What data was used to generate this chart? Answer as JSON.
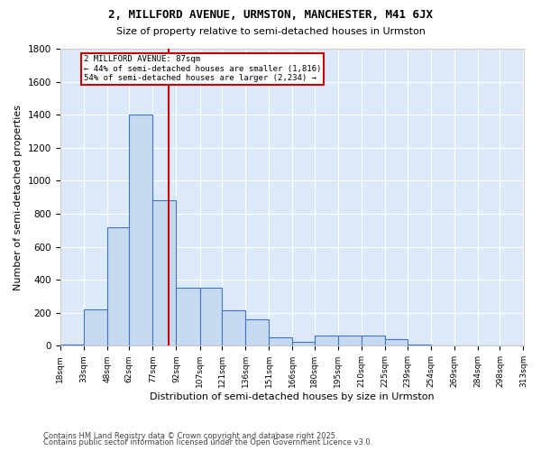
{
  "title1": "2, MILLFORD AVENUE, URMSTON, MANCHESTER, M41 6JX",
  "title2": "Size of property relative to semi-detached houses in Urmston",
  "xlabel": "Distribution of semi-detached houses by size in Urmston",
  "ylabel": "Number of semi-detached properties",
  "bin_labels": [
    "18sqm",
    "33sqm",
    "48sqm",
    "62sqm",
    "77sqm",
    "92sqm",
    "107sqm",
    "121sqm",
    "136sqm",
    "151sqm",
    "166sqm",
    "180sqm",
    "195sqm",
    "210sqm",
    "225sqm",
    "239sqm",
    "254sqm",
    "269sqm",
    "284sqm",
    "298sqm",
    "313sqm"
  ],
  "bin_edges": [
    18,
    33,
    48,
    62,
    77,
    92,
    107,
    121,
    136,
    151,
    166,
    180,
    195,
    210,
    225,
    239,
    254,
    269,
    284,
    298,
    313
  ],
  "bar_heights": [
    10,
    220,
    720,
    1400,
    880,
    350,
    350,
    215,
    160,
    50,
    25,
    60,
    60,
    60,
    40,
    5,
    0,
    0,
    0,
    0
  ],
  "bar_color": "#c5d9f1",
  "bar_edge_color": "#4472c4",
  "property_size": 87,
  "vline_color": "#cc0000",
  "annotation_line1": "2 MILLFORD AVENUE: 87sqm",
  "annotation_line2": "← 44% of semi-detached houses are smaller (1,816)",
  "annotation_line3": "54% of semi-detached houses are larger (2,234) →",
  "annotation_box_color": "#cc0000",
  "ylim": [
    0,
    1800
  ],
  "yticks": [
    0,
    200,
    400,
    600,
    800,
    1000,
    1200,
    1400,
    1600,
    1800
  ],
  "footer1": "Contains HM Land Registry data © Crown copyright and database right 2025.",
  "footer2": "Contains public sector information licensed under the Open Government Licence v3.0.",
  "bg_color": "#dce9f8",
  "fig_bg_color": "#ffffff"
}
